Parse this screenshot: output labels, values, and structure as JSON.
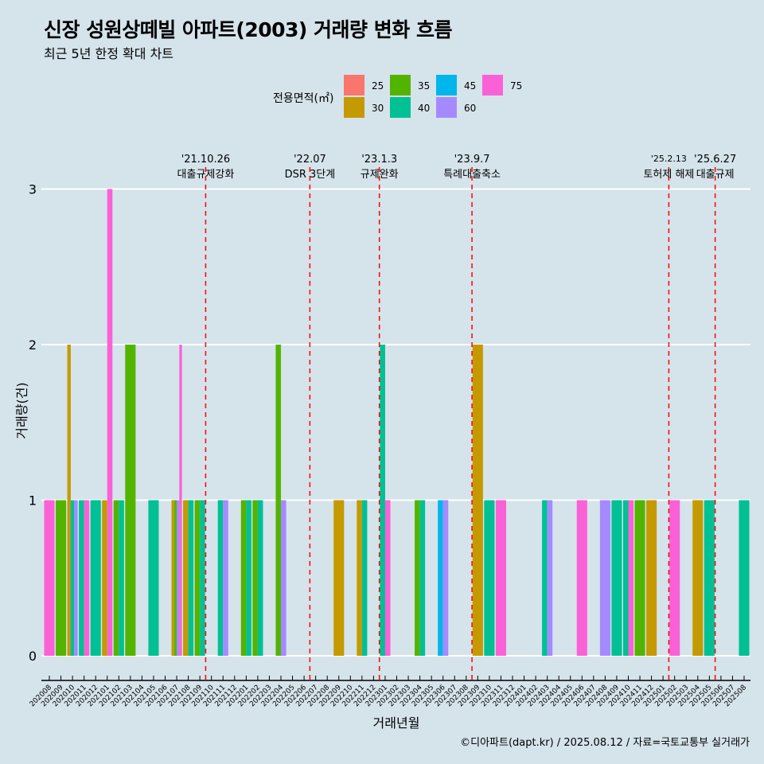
{
  "header": {
    "title": "신장 성원상떼빌 아파트(2003) 거래량 변화 흐름",
    "subtitle": "최근 5년 한정 확대 차트"
  },
  "caption": "©디아파트(dapt.kr) / 2025.08.12 / 자료=국토교통부 실거래가",
  "chart_data": {
    "type": "bar",
    "xlabel": "거래년월",
    "ylabel": "거래량(건)",
    "ylim": [
      0,
      3
    ],
    "yticks": [
      0,
      1,
      2,
      3
    ],
    "legend": {
      "title": "전용면적(㎡)",
      "position": "top",
      "entries": [
        {
          "key": "25",
          "color": "#f8766d"
        },
        {
          "key": "30",
          "color": "#c49a00"
        },
        {
          "key": "35",
          "color": "#53b400"
        },
        {
          "key": "40",
          "color": "#00c094"
        },
        {
          "key": "45",
          "color": "#00b6eb"
        },
        {
          "key": "60",
          "color": "#a58aff"
        },
        {
          "key": "75",
          "color": "#fb61d7"
        }
      ]
    },
    "categories": [
      "202008",
      "202009",
      "202010",
      "202011",
      "202012",
      "202101",
      "202102",
      "202103",
      "202104",
      "202105",
      "202106",
      "202107",
      "202108",
      "202109",
      "202110",
      "202111",
      "202112",
      "202201",
      "202202",
      "202203",
      "202204",
      "202205",
      "202206",
      "202207",
      "202208",
      "202209",
      "202210",
      "202211",
      "202212",
      "202301",
      "202302",
      "202303",
      "202304",
      "202305",
      "202306",
      "202307",
      "202308",
      "202309",
      "202310",
      "202311",
      "202312",
      "202401",
      "202402",
      "202403",
      "202404",
      "202405",
      "202406",
      "202407",
      "202408",
      "202409",
      "202410",
      "202411",
      "202412",
      "202501",
      "202502",
      "202503",
      "202504",
      "202505",
      "202506",
      "202507",
      "202508"
    ],
    "series": [
      {
        "name": "25",
        "values": [
          0,
          0,
          0,
          0,
          0,
          0,
          0,
          0,
          0,
          0,
          0,
          0,
          0,
          0,
          0,
          0,
          0,
          0,
          0,
          0,
          0,
          0,
          0,
          0,
          0,
          0,
          0,
          0,
          0,
          0,
          0,
          0,
          0,
          0,
          0,
          0,
          0,
          0,
          0,
          0,
          0,
          0,
          0,
          0,
          0,
          0,
          0,
          0,
          0,
          0,
          0,
          0,
          0,
          0,
          0,
          0,
          0,
          0,
          0,
          0,
          0
        ]
      },
      {
        "name": "30",
        "values": [
          0,
          0,
          2,
          0,
          0,
          1,
          0,
          0,
          0,
          0,
          0,
          1,
          1,
          0,
          0,
          0,
          0,
          0,
          0,
          0,
          0,
          0,
          0,
          0,
          0,
          1,
          0,
          1,
          0,
          0,
          0,
          0,
          0,
          0,
          0,
          0,
          0,
          2,
          0,
          0,
          0,
          0,
          0,
          0,
          0,
          0,
          0,
          0,
          0,
          0,
          0,
          0,
          1,
          0,
          0,
          0,
          1,
          0,
          0,
          0,
          0
        ]
      },
      {
        "name": "35",
        "values": [
          0,
          1,
          0,
          0,
          0,
          0,
          1,
          2,
          0,
          0,
          0,
          1,
          0,
          1,
          0,
          0,
          0,
          1,
          1,
          0,
          2,
          0,
          0,
          0,
          0,
          0,
          0,
          0,
          0,
          0,
          0,
          0,
          1,
          0,
          0,
          0,
          0,
          0,
          0,
          0,
          0,
          0,
          0,
          0,
          0,
          0,
          0,
          0,
          0,
          0,
          0,
          1,
          0,
          0,
          0,
          0,
          0,
          0,
          0,
          0,
          0
        ]
      },
      {
        "name": "40",
        "values": [
          0,
          0,
          1,
          1,
          1,
          0,
          1,
          0,
          0,
          1,
          0,
          0,
          1,
          1,
          0,
          1,
          0,
          1,
          1,
          0,
          0,
          0,
          0,
          0,
          0,
          0,
          0,
          1,
          0,
          2,
          0,
          0,
          1,
          0,
          0,
          0,
          0,
          0,
          1,
          0,
          0,
          0,
          0,
          1,
          0,
          0,
          0,
          0,
          0,
          1,
          1,
          0,
          0,
          0,
          0,
          0,
          0,
          1,
          0,
          0,
          1
        ]
      },
      {
        "name": "45",
        "values": [
          0,
          0,
          0,
          0,
          0,
          0,
          0,
          0,
          0,
          0,
          0,
          0,
          0,
          0,
          0,
          0,
          0,
          0,
          0,
          0,
          0,
          0,
          0,
          0,
          0,
          0,
          0,
          0,
          0,
          0,
          0,
          0,
          0,
          0,
          1,
          0,
          0,
          0,
          0,
          0,
          0,
          0,
          0,
          0,
          0,
          0,
          0,
          0,
          0,
          0,
          0,
          0,
          0,
          0,
          0,
          0,
          0,
          0,
          0,
          0,
          0
        ]
      },
      {
        "name": "60",
        "values": [
          0,
          0,
          1,
          0,
          0,
          0,
          0,
          0,
          0,
          0,
          0,
          1,
          0,
          0,
          0,
          1,
          0,
          0,
          0,
          0,
          1,
          0,
          0,
          0,
          0,
          0,
          0,
          0,
          0,
          0,
          0,
          0,
          0,
          0,
          1,
          0,
          0,
          0,
          0,
          0,
          0,
          0,
          0,
          1,
          0,
          0,
          0,
          0,
          1,
          0,
          0,
          0,
          0,
          0,
          0,
          0,
          0,
          0,
          0,
          0,
          0
        ]
      },
      {
        "name": "75",
        "values": [
          1,
          0,
          0,
          1,
          0,
          3,
          0,
          0,
          0,
          0,
          0,
          2,
          0,
          0,
          0,
          0,
          0,
          0,
          0,
          0,
          0,
          0,
          0,
          0,
          0,
          0,
          0,
          0,
          0,
          1,
          0,
          0,
          0,
          0,
          0,
          0,
          0,
          0,
          0,
          1,
          0,
          0,
          0,
          0,
          0,
          0,
          1,
          0,
          0,
          0,
          1,
          0,
          0,
          0,
          1,
          0,
          0,
          0,
          0,
          0,
          0
        ]
      }
    ],
    "annotations": [
      {
        "category": "202110",
        "date": "'21.10.26",
        "label": "대출규제강화"
      },
      {
        "category": "202207",
        "date": "'22.07",
        "label": "DSR 3단계"
      },
      {
        "category": "202301",
        "date": "'23.1.3",
        "label": "규제완화"
      },
      {
        "category": "202309",
        "date": "'23.9.7",
        "label": "특례대출축소"
      },
      {
        "category": "202502",
        "date": "'25.2.13",
        "label": "토허제 해제"
      },
      {
        "category": "202506",
        "date": "'25.6.27",
        "label": "대출규제"
      }
    ]
  }
}
